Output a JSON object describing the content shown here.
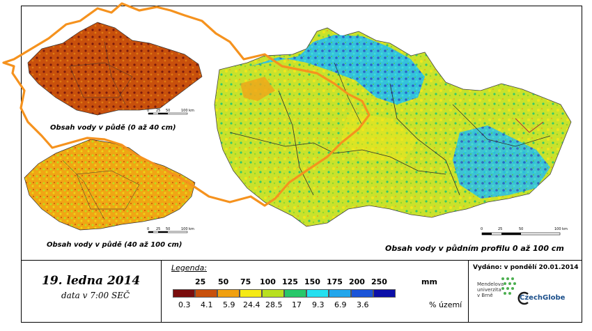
{
  "map": {
    "main_caption": "Obsah vody v půdním profilu 0 až 100 cm",
    "topsoil_caption": "Obsah vody v půdě (0 až 40 cm)",
    "subsoil_caption": "Obsah vody v půdě (40 až 100 cm)",
    "scale_labels": [
      "0",
      "25",
      "50",
      "",
      "100 km"
    ]
  },
  "footer": {
    "date": "19. ledna 2014",
    "time": "data v 7:00 SEČ",
    "issued": "Vydáno: v pondělí 20.01.2014",
    "legend_title": "Legenda:",
    "mm_unit": "mm",
    "pct_unit": "% území",
    "institution": "Mendelova univerzita v Brně",
    "logo_text": "CzechGlobe"
  },
  "legend": {
    "mm_values": [
      "25",
      "50",
      "75",
      "100",
      "125",
      "150",
      "175",
      "200",
      "250"
    ],
    "pct_values": [
      "0.3",
      "4.1",
      "5.9",
      "24.4",
      "28.5",
      "17",
      "9.3",
      "6.9",
      "3.6"
    ],
    "colors": [
      "#7a0d0d",
      "#c8500c",
      "#f0a010",
      "#f5ea15",
      "#b8e020",
      "#28c86a",
      "#25e0f0",
      "#22a6ec",
      "#1a54d8",
      "#0b0fa8"
    ]
  }
}
